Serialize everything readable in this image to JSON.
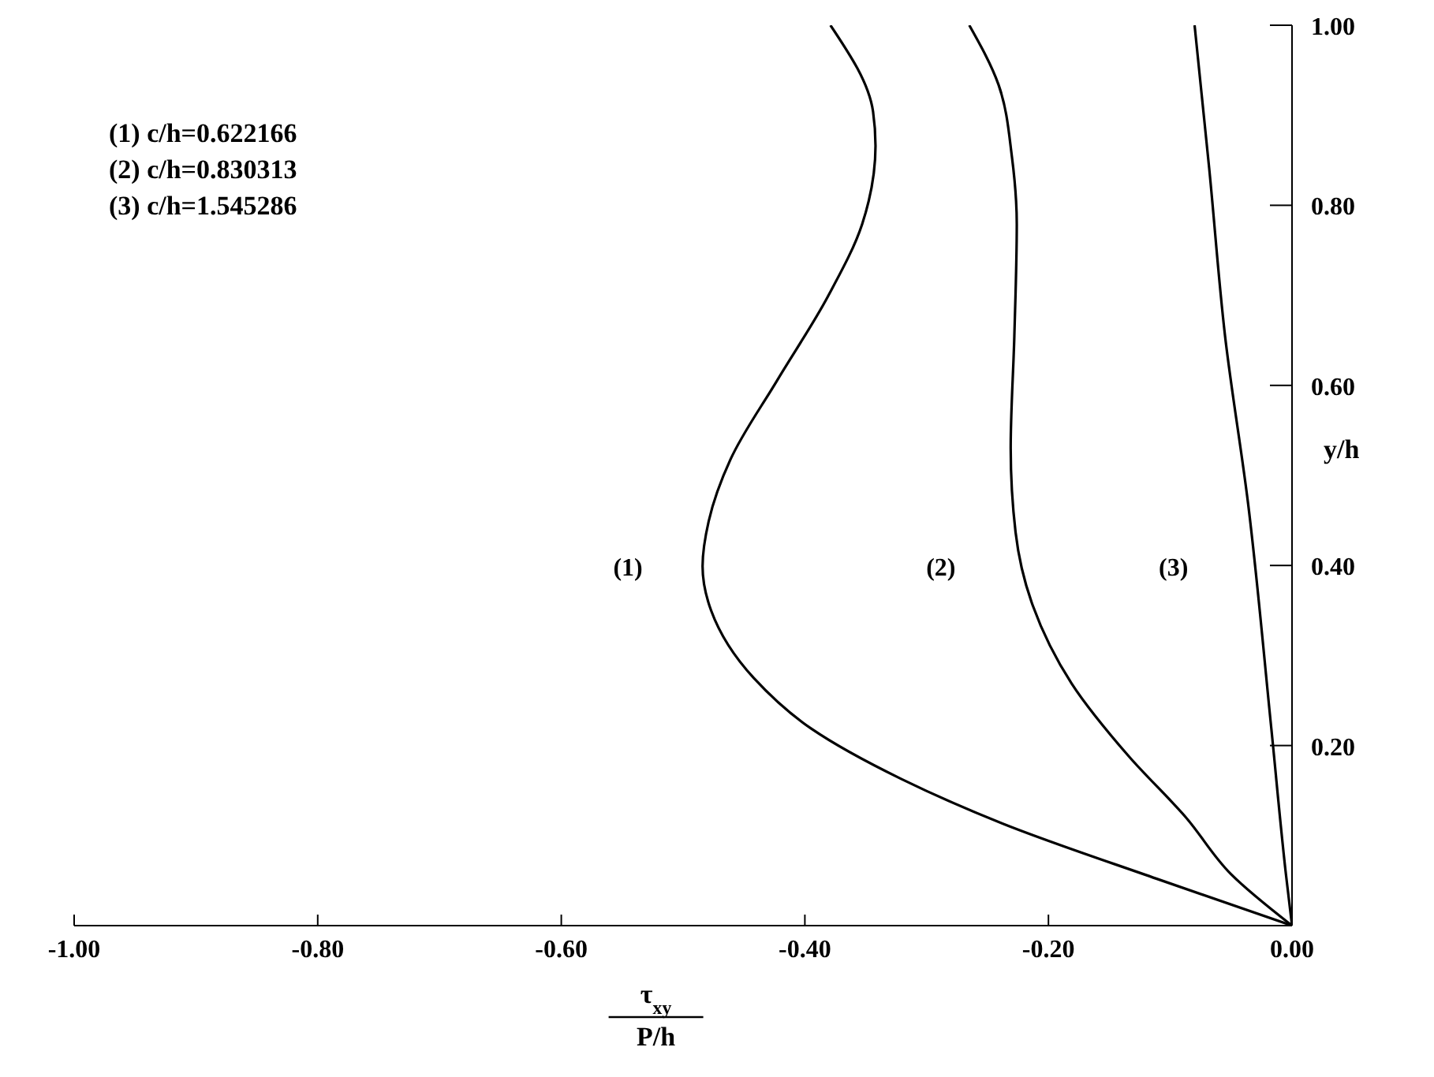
{
  "chart_data": {
    "type": "line",
    "xlabel": "τ$_{xy}$\nP/h",
    "ylabel": "y/h",
    "annotations": [
      "(1) c/h=0.622166",
      "(2) c/h=0.830313",
      "(3) c/h=1.545286"
    ],
    "xlim": [
      -1,
      0
    ],
    "ylim": [
      0,
      1
    ],
    "xticks": [
      {
        "value": -1,
        "label": "-1.00"
      },
      {
        "value": -0.8,
        "label": "-0.80"
      },
      {
        "value": -0.6,
        "label": "-0.60"
      },
      {
        "value": -0.4,
        "label": "-0.40"
      },
      {
        "value": -0.2,
        "label": "-0.20"
      },
      {
        "value": 0,
        "label": "0.00"
      }
    ],
    "yticks": [
      {
        "value": 0,
        "label": null
      },
      {
        "value": 0.2,
        "label": "0.20"
      },
      {
        "value": 0.4,
        "label": "0.40"
      },
      {
        "value": 0.6,
        "label": "0.60"
      },
      {
        "value": 0.8,
        "label": "0.80"
      },
      {
        "value": 1,
        "label": "1.00"
      }
    ],
    "grid": false,
    "legend": false,
    "marker": "none",
    "line_style": "solid",
    "series": [
      {
        "name": "(1)",
        "color": "#000000",
        "x": [
          -0.379,
          -0.344,
          -0.342,
          -0.353,
          -0.381,
          -0.423,
          -0.461,
          -0.479,
          -0.484,
          -0.477,
          -0.442,
          -0.395,
          -0.321,
          -0.237,
          -0.111,
          0
        ],
        "values": [
          1.0,
          0.904,
          0.866,
          0.779,
          0.699,
          0.605,
          0.518,
          0.449,
          0.399,
          0.35,
          0.275,
          0.219,
          0.163,
          0.113,
          0.052,
          0
        ]
      },
      {
        "name": "(2)",
        "color": "#000000",
        "x": [
          -0.265,
          -0.241,
          -0.23,
          -0.226,
          -0.228,
          -0.231,
          -0.227,
          -0.213,
          -0.181,
          -0.134,
          -0.087,
          -0.05,
          0
        ],
        "values": [
          1.0,
          0.934,
          0.854,
          0.779,
          0.655,
          0.53,
          0.437,
          0.356,
          0.269,
          0.188,
          0.12,
          0.057,
          0
        ]
      },
      {
        "name": "(3)",
        "color": "#000000",
        "x": [
          -0.08,
          -0.068,
          -0.055,
          -0.036,
          -0.017,
          -0.005,
          0
        ],
        "values": [
          1.0,
          0.841,
          0.655,
          0.468,
          0.219,
          0.057,
          0
        ]
      }
    ]
  }
}
